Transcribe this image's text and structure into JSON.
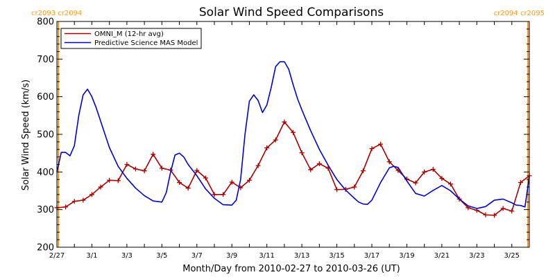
{
  "chart_data": {
    "type": "line",
    "title": "Solar Wind Speed Comparisons",
    "xlabel": "Month/Day from 2010-02-27 to 2010-03-26 (UT)",
    "ylabel": "Solar Wind Speed (km/s)",
    "xlim": [
      "2010-02-27",
      "2010-03-26"
    ],
    "ylim": [
      200,
      800
    ],
    "yticks": [
      200,
      300,
      400,
      500,
      600,
      700,
      800
    ],
    "ytick_labels": [
      "200",
      "300",
      "400",
      "500",
      "600",
      "700",
      "800"
    ],
    "xticks": [
      "2010-02-27",
      "2010-03-01",
      "2010-03-03",
      "2010-03-05",
      "2010-03-07",
      "2010-03-09",
      "2010-03-11",
      "2010-03-13",
      "2010-03-15",
      "2010-03-17",
      "2010-03-19",
      "2010-03-21",
      "2010-03-23",
      "2010-03-25"
    ],
    "xtick_labels": [
      "2/27",
      "3/1",
      "3/3",
      "3/5",
      "3/7",
      "3/9",
      "3/11",
      "3/13",
      "3/15",
      "3/17",
      "3/19",
      "3/21",
      "3/23",
      "3/25"
    ],
    "grid": false,
    "legend_position": "top-left",
    "series": [
      {
        "name": "OMNI_M (12-hr avg)",
        "color": "#a50000",
        "marker": "plus",
        "x": [
          "2010-02-27T00:00",
          "2010-02-27T12:00",
          "2010-02-28T00:00",
          "2010-02-28T12:00",
          "2010-03-01T00:00",
          "2010-03-01T12:00",
          "2010-03-02T00:00",
          "2010-03-02T12:00",
          "2010-03-03T00:00",
          "2010-03-03T12:00",
          "2010-03-04T00:00",
          "2010-03-04T12:00",
          "2010-03-05T00:00",
          "2010-03-05T12:00",
          "2010-03-06T00:00",
          "2010-03-06T12:00",
          "2010-03-07T00:00",
          "2010-03-07T12:00",
          "2010-03-08T00:00",
          "2010-03-08T12:00",
          "2010-03-09T00:00",
          "2010-03-09T12:00",
          "2010-03-10T00:00",
          "2010-03-10T12:00",
          "2010-03-11T00:00",
          "2010-03-11T12:00",
          "2010-03-12T00:00",
          "2010-03-12T12:00",
          "2010-03-13T00:00",
          "2010-03-13T12:00",
          "2010-03-14T00:00",
          "2010-03-14T12:00",
          "2010-03-15T00:00",
          "2010-03-15T12:00",
          "2010-03-16T00:00",
          "2010-03-16T12:00",
          "2010-03-17T00:00",
          "2010-03-17T12:00",
          "2010-03-18T00:00",
          "2010-03-18T12:00",
          "2010-03-19T00:00",
          "2010-03-19T12:00",
          "2010-03-20T00:00",
          "2010-03-20T12:00",
          "2010-03-21T00:00",
          "2010-03-21T12:00",
          "2010-03-22T00:00",
          "2010-03-22T12:00",
          "2010-03-23T00:00",
          "2010-03-23T12:00",
          "2010-03-24T00:00",
          "2010-03-24T12:00",
          "2010-03-25T00:00",
          "2010-03-25T12:00",
          "2010-03-26T00:00"
        ],
        "y": [
          305,
          307,
          322,
          325,
          340,
          360,
          378,
          377,
          420,
          408,
          403,
          447,
          410,
          405,
          372,
          357,
          404,
          384,
          340,
          340,
          373,
          358,
          378,
          417,
          464,
          485,
          533,
          505,
          451,
          406,
          422,
          410,
          353,
          354,
          360,
          403,
          462,
          474,
          427,
          404,
          381,
          371,
          400,
          407,
          383,
          368,
          328,
          305,
          298,
          286,
          285,
          303,
          296,
          372,
          390
        ]
      },
      {
        "name": "Predictive Science MAS Model",
        "color": "#0000cc",
        "marker": "none",
        "x": [
          "2010-02-27T00:00",
          "2010-02-27T06:00",
          "2010-02-27T12:00",
          "2010-02-27T18:00",
          "2010-02-28T00:00",
          "2010-02-28T06:00",
          "2010-02-28T12:00",
          "2010-02-28T18:00",
          "2010-03-01T00:00",
          "2010-03-01T06:00",
          "2010-03-01T12:00",
          "2010-03-01T18:00",
          "2010-03-02T00:00",
          "2010-03-02T12:00",
          "2010-03-03T00:00",
          "2010-03-03T12:00",
          "2010-03-04T00:00",
          "2010-03-04T12:00",
          "2010-03-05T00:00",
          "2010-03-05T06:00",
          "2010-03-05T12:00",
          "2010-03-05T18:00",
          "2010-03-06T00:00",
          "2010-03-06T06:00",
          "2010-03-06T12:00",
          "2010-03-07T00:00",
          "2010-03-07T12:00",
          "2010-03-08T00:00",
          "2010-03-08T12:00",
          "2010-03-09T00:00",
          "2010-03-09T06:00",
          "2010-03-09T12:00",
          "2010-03-09T18:00",
          "2010-03-10T00:00",
          "2010-03-10T06:00",
          "2010-03-10T12:00",
          "2010-03-10T18:00",
          "2010-03-11T00:00",
          "2010-03-11T06:00",
          "2010-03-11T12:00",
          "2010-03-11T18:00",
          "2010-03-12T00:00",
          "2010-03-12T06:00",
          "2010-03-12T12:00",
          "2010-03-12T18:00",
          "2010-03-13T00:00",
          "2010-03-13T12:00",
          "2010-03-14T00:00",
          "2010-03-14T12:00",
          "2010-03-15T00:00",
          "2010-03-15T12:00",
          "2010-03-16T00:00",
          "2010-03-16T06:00",
          "2010-03-16T12:00",
          "2010-03-16T18:00",
          "2010-03-17T00:00",
          "2010-03-17T12:00",
          "2010-03-18T00:00",
          "2010-03-18T06:00",
          "2010-03-18T12:00",
          "2010-03-19T00:00",
          "2010-03-19T12:00",
          "2010-03-20T00:00",
          "2010-03-20T12:00",
          "2010-03-21T00:00",
          "2010-03-21T12:00",
          "2010-03-22T00:00",
          "2010-03-22T12:00",
          "2010-03-23T00:00",
          "2010-03-23T12:00",
          "2010-03-24T00:00",
          "2010-03-24T12:00",
          "2010-03-25T00:00",
          "2010-03-25T06:00",
          "2010-03-25T12:00",
          "2010-03-25T18:00",
          "2010-03-26T00:00"
        ],
        "y": [
          400,
          452,
          452,
          443,
          470,
          550,
          605,
          620,
          600,
          570,
          535,
          500,
          465,
          415,
          383,
          357,
          337,
          323,
          320,
          345,
          400,
          445,
          450,
          440,
          420,
          390,
          355,
          330,
          313,
          312,
          325,
          380,
          500,
          588,
          605,
          590,
          558,
          578,
          625,
          680,
          693,
          693,
          673,
          632,
          595,
          565,
          510,
          460,
          418,
          380,
          352,
          330,
          320,
          315,
          314,
          325,
          372,
          411,
          415,
          412,
          376,
          343,
          336,
          351,
          364,
          350,
          328,
          310,
          303,
          308,
          325,
          328,
          318,
          312,
          311,
          307,
          388
        ]
      }
    ],
    "vertical_markers": [
      {
        "x": "2010-02-27",
        "color": "#f59a1f",
        "label": "cr2093 cr2094"
      },
      {
        "x": "2010-03-26",
        "color": "#f59a1f",
        "label": "cr2094 cr2095"
      }
    ]
  }
}
